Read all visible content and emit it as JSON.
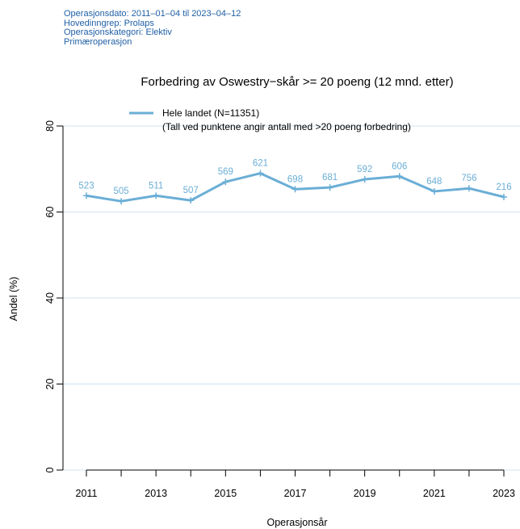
{
  "meta_lines": [
    "Operasjonsdato: 2011–01–04 til 2023–04–12",
    "Hovedinngrep: Prolaps",
    "Operasjonskategori: Elektiv",
    "Primæroperasjon"
  ],
  "chart_data": {
    "type": "line",
    "title": "Forbedring av Oswestry−skår >= 20 poeng (12 mnd. etter)",
    "xlabel": "Operasjonsår",
    "ylabel": "Andel (%)",
    "ylim": [
      0,
      80
    ],
    "yticks": [
      0,
      20,
      40,
      60,
      80
    ],
    "xlim": [
      2011,
      2023
    ],
    "xticks": [
      2011,
      2013,
      2015,
      2017,
      2019,
      2021,
      2023
    ],
    "grid": "horizontal",
    "legend_placement": "top-left",
    "legend_note": "(Tall ved punktene angir antall med >20 poeng forbedring)",
    "colors": {
      "series": "#6aaed6",
      "grid": "#cfe3f3",
      "meta": "#1f5fa6"
    },
    "series": [
      {
        "name": "Hele landet (N=11351)",
        "x": [
          2011,
          2012,
          2013,
          2014,
          2015,
          2016,
          2017,
          2018,
          2019,
          2020,
          2021,
          2022,
          2023
        ],
        "y": [
          63.8,
          62.5,
          63.8,
          62.7,
          67.0,
          69.0,
          65.3,
          65.7,
          67.6,
          68.3,
          64.8,
          65.5,
          63.5
        ],
        "labels": [
          "523",
          "505",
          "511",
          "507",
          "569",
          "621",
          "698",
          "681",
          "592",
          "606",
          "648",
          "756",
          "216"
        ]
      }
    ]
  }
}
